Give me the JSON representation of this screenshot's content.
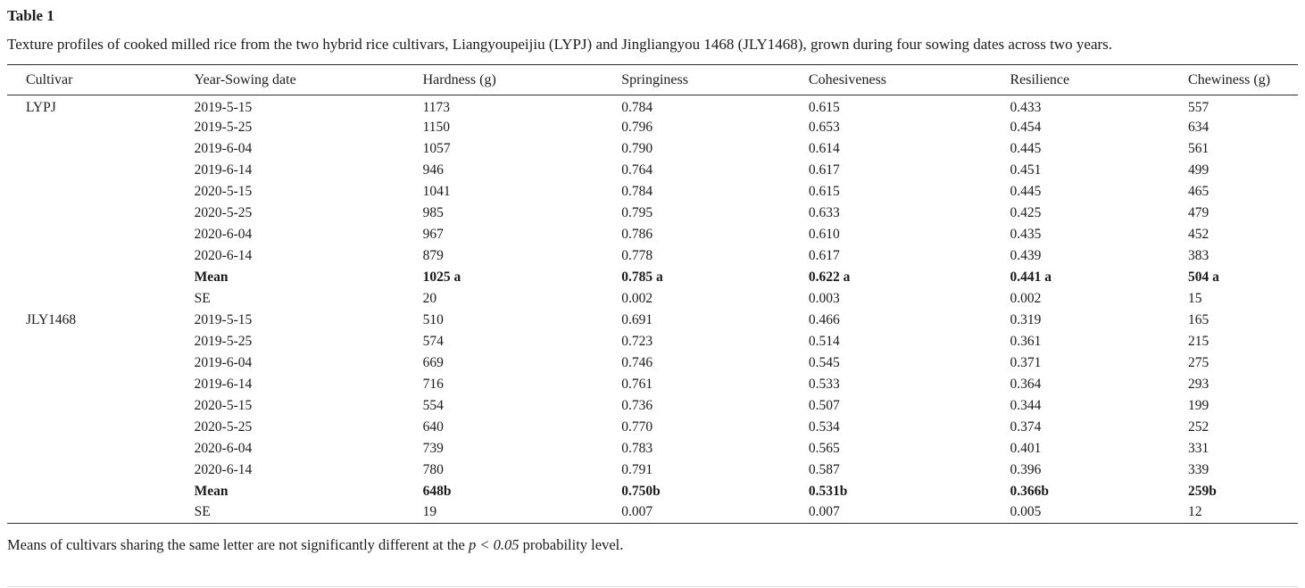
{
  "table": {
    "label": "Table 1",
    "caption": "Texture profiles of cooked milled rice from the two hybrid rice cultivars, Liangyoupeijiu (LYPJ) and Jingliangyou 1468 (JLY1468), grown during four sowing dates across two years.",
    "columns": [
      "Cultivar",
      "Year-Sowing date",
      "Hardness (g)",
      "Springiness",
      "Cohesiveness",
      "Resilience",
      "Chewiness (g)"
    ],
    "rows": [
      {
        "cells": [
          "LYPJ",
          "2019-5-15",
          "1173",
          "0.784",
          "0.615",
          "0.433",
          "557"
        ],
        "bold": false
      },
      {
        "cells": [
          "",
          "2019-5-25",
          "1150",
          "0.796",
          "0.653",
          "0.454",
          "634"
        ],
        "bold": false
      },
      {
        "cells": [
          "",
          "2019-6-04",
          "1057",
          "0.790",
          "0.614",
          "0.445",
          "561"
        ],
        "bold": false
      },
      {
        "cells": [
          "",
          "2019-6-14",
          "946",
          "0.764",
          "0.617",
          "0.451",
          "499"
        ],
        "bold": false
      },
      {
        "cells": [
          "",
          "2020-5-15",
          "1041",
          "0.784",
          "0.615",
          "0.445",
          "465"
        ],
        "bold": false
      },
      {
        "cells": [
          "",
          "2020-5-25",
          "985",
          "0.795",
          "0.633",
          "0.425",
          "479"
        ],
        "bold": false
      },
      {
        "cells": [
          "",
          "2020-6-04",
          "967",
          "0.786",
          "0.610",
          "0.435",
          "452"
        ],
        "bold": false
      },
      {
        "cells": [
          "",
          "2020-6-14",
          "879",
          "0.778",
          "0.617",
          "0.439",
          "383"
        ],
        "bold": false
      },
      {
        "cells": [
          "",
          "Mean",
          "1025 a",
          "0.785 a",
          "0.622 a",
          "0.441 a",
          "504 a"
        ],
        "bold": true
      },
      {
        "cells": [
          "",
          "SE",
          "20",
          "0.002",
          "0.003",
          "0.002",
          "15"
        ],
        "bold": false
      },
      {
        "cells": [
          "JLY1468",
          "2019-5-15",
          "510",
          "0.691",
          "0.466",
          "0.319",
          "165"
        ],
        "bold": false
      },
      {
        "cells": [
          "",
          "2019-5-25",
          "574",
          "0.723",
          "0.514",
          "0.361",
          "215"
        ],
        "bold": false
      },
      {
        "cells": [
          "",
          "2019-6-04",
          "669",
          "0.746",
          "0.545",
          "0.371",
          "275"
        ],
        "bold": false
      },
      {
        "cells": [
          "",
          "2019-6-14",
          "716",
          "0.761",
          "0.533",
          "0.364",
          "293"
        ],
        "bold": false
      },
      {
        "cells": [
          "",
          "2020-5-15",
          "554",
          "0.736",
          "0.507",
          "0.344",
          "199"
        ],
        "bold": false
      },
      {
        "cells": [
          "",
          "2020-5-25",
          "640",
          "0.770",
          "0.534",
          "0.374",
          "252"
        ],
        "bold": false
      },
      {
        "cells": [
          "",
          "2020-6-04",
          "739",
          "0.783",
          "0.565",
          "0.401",
          "331"
        ],
        "bold": false
      },
      {
        "cells": [
          "",
          "2020-6-14",
          "780",
          "0.791",
          "0.587",
          "0.396",
          "339"
        ],
        "bold": false
      },
      {
        "cells": [
          "",
          "Mean",
          "648b",
          "0.750b",
          "0.531b",
          "0.366b",
          "259b"
        ],
        "bold": true
      },
      {
        "cells": [
          "",
          "SE",
          "19",
          "0.007",
          "0.007",
          "0.005",
          "12"
        ],
        "bold": false
      }
    ],
    "footnote": {
      "prefix": "Means of cultivars sharing the same letter are not significantly different at the ",
      "italic": "p < 0.05",
      "suffix": " probability level."
    }
  }
}
